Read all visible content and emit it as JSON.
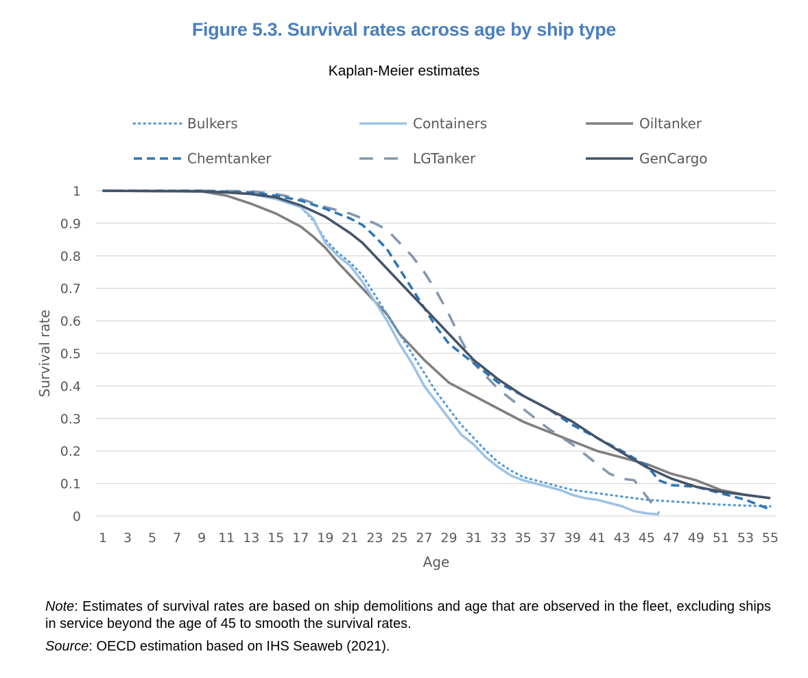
{
  "figure": {
    "title": "Figure 5.3. Survival rates across age by ship type",
    "subtitle": "Kaplan-Meier estimates"
  },
  "notes": {
    "note_label": "Note",
    "note_text": ": Estimates of survival rates are based on ship demolitions and age that are observed in the fleet, excluding ships in service beyond the age of 45 to smooth the survival rates.",
    "source_label": "Source",
    "source_text": ": OECD estimation based on IHS Seaweb (2021)."
  },
  "chart_data": {
    "type": "line",
    "title": "",
    "xlabel": "Age",
    "ylabel": "Survival rate",
    "xlim": [
      1,
      55
    ],
    "ylim": [
      0,
      1
    ],
    "x_ticks": [
      1,
      3,
      5,
      7,
      9,
      11,
      13,
      15,
      17,
      19,
      21,
      23,
      25,
      27,
      29,
      31,
      33,
      35,
      37,
      39,
      41,
      43,
      45,
      47,
      49,
      51,
      53,
      55
    ],
    "y_ticks": [
      "0",
      "0.1",
      "0.2",
      "0.3",
      "0.4",
      "0.5",
      "0.6",
      "0.7",
      "0.8",
      "0.9",
      "1"
    ],
    "grid": "horizontal",
    "legend_position": "top",
    "series": [
      {
        "name": "Bulkers",
        "color": "#5b9bd5",
        "style": "dotted",
        "points": [
          [
            1,
            1
          ],
          [
            9,
            1
          ],
          [
            13,
            0.99
          ],
          [
            15,
            0.975
          ],
          [
            17,
            0.95
          ],
          [
            18,
            0.91
          ],
          [
            19,
            0.85
          ],
          [
            20,
            0.81
          ],
          [
            21,
            0.78
          ],
          [
            22,
            0.74
          ],
          [
            23,
            0.68
          ],
          [
            24,
            0.62
          ],
          [
            25,
            0.56
          ],
          [
            26,
            0.5
          ],
          [
            27,
            0.44
          ],
          [
            28,
            0.38
          ],
          [
            29,
            0.33
          ],
          [
            30,
            0.28
          ],
          [
            31,
            0.24
          ],
          [
            32,
            0.2
          ],
          [
            33,
            0.165
          ],
          [
            34,
            0.14
          ],
          [
            35,
            0.12
          ],
          [
            37,
            0.1
          ],
          [
            39,
            0.08
          ],
          [
            41,
            0.07
          ],
          [
            43,
            0.06
          ],
          [
            45,
            0.05
          ],
          [
            47,
            0.045
          ],
          [
            49,
            0.04
          ],
          [
            51,
            0.035
          ],
          [
            53,
            0.032
          ],
          [
            55,
            0.03
          ]
        ]
      },
      {
        "name": "Containers",
        "color": "#9dc3e6",
        "style": "solid",
        "points": [
          [
            1,
            1
          ],
          [
            9,
            1
          ],
          [
            13,
            0.99
          ],
          [
            15,
            0.975
          ],
          [
            17,
            0.95
          ],
          [
            18,
            0.915
          ],
          [
            19,
            0.84
          ],
          [
            20,
            0.8
          ],
          [
            21,
            0.77
          ],
          [
            22,
            0.72
          ],
          [
            23,
            0.66
          ],
          [
            24,
            0.6
          ],
          [
            25,
            0.53
          ],
          [
            26,
            0.47
          ],
          [
            27,
            0.4
          ],
          [
            28,
            0.35
          ],
          [
            29,
            0.3
          ],
          [
            30,
            0.25
          ],
          [
            31,
            0.22
          ],
          [
            32,
            0.18
          ],
          [
            33,
            0.15
          ],
          [
            34,
            0.125
          ],
          [
            35,
            0.11
          ],
          [
            36,
            0.1
          ],
          [
            37,
            0.09
          ],
          [
            38,
            0.08
          ],
          [
            39,
            0.065
          ],
          [
            40,
            0.055
          ],
          [
            41,
            0.05
          ],
          [
            42,
            0.04
          ],
          [
            43,
            0.03
          ],
          [
            44,
            0.015
          ],
          [
            45,
            0.008
          ],
          [
            46,
            0.005
          ]
        ]
      },
      {
        "name": "Oiltanker",
        "color": "#7f7f7f",
        "style": "solid",
        "points": [
          [
            1,
            1
          ],
          [
            9,
            0.998
          ],
          [
            11,
            0.985
          ],
          [
            13,
            0.96
          ],
          [
            14,
            0.945
          ],
          [
            15,
            0.93
          ],
          [
            16,
            0.91
          ],
          [
            17,
            0.89
          ],
          [
            18,
            0.86
          ],
          [
            19,
            0.825
          ],
          [
            20,
            0.78
          ],
          [
            21,
            0.74
          ],
          [
            22,
            0.7
          ],
          [
            23,
            0.66
          ],
          [
            24,
            0.62
          ],
          [
            25,
            0.56
          ],
          [
            26,
            0.52
          ],
          [
            27,
            0.48
          ],
          [
            28,
            0.445
          ],
          [
            29,
            0.41
          ],
          [
            31,
            0.37
          ],
          [
            33,
            0.33
          ],
          [
            35,
            0.29
          ],
          [
            37,
            0.26
          ],
          [
            39,
            0.23
          ],
          [
            41,
            0.2
          ],
          [
            43,
            0.18
          ],
          [
            45,
            0.16
          ],
          [
            47,
            0.13
          ],
          [
            49,
            0.11
          ],
          [
            51,
            0.08
          ],
          [
            53,
            0.065
          ],
          [
            55,
            0.055
          ]
        ]
      },
      {
        "name": "Chemtanker",
        "color": "#2e75b6",
        "style": "dashed",
        "points": [
          [
            1,
            1
          ],
          [
            9,
            1
          ],
          [
            13,
            0.995
          ],
          [
            15,
            0.985
          ],
          [
            17,
            0.97
          ],
          [
            19,
            0.945
          ],
          [
            21,
            0.915
          ],
          [
            22,
            0.895
          ],
          [
            23,
            0.86
          ],
          [
            24,
            0.82
          ],
          [
            25,
            0.76
          ],
          [
            26,
            0.7
          ],
          [
            27,
            0.64
          ],
          [
            28,
            0.58
          ],
          [
            29,
            0.53
          ],
          [
            30,
            0.5
          ],
          [
            31,
            0.47
          ],
          [
            32,
            0.44
          ],
          [
            33,
            0.41
          ],
          [
            35,
            0.37
          ],
          [
            37,
            0.33
          ],
          [
            39,
            0.28
          ],
          [
            41,
            0.24
          ],
          [
            43,
            0.2
          ],
          [
            45,
            0.155
          ],
          [
            46,
            0.11
          ],
          [
            47,
            0.095
          ],
          [
            49,
            0.09
          ],
          [
            51,
            0.07
          ],
          [
            53,
            0.05
          ],
          [
            55,
            0.02
          ]
        ]
      },
      {
        "name": "LGTanker",
        "color": "#8497b0",
        "style": "longdash",
        "points": [
          [
            1,
            1
          ],
          [
            9,
            1
          ],
          [
            13,
            0.998
          ],
          [
            15,
            0.99
          ],
          [
            17,
            0.975
          ],
          [
            19,
            0.95
          ],
          [
            21,
            0.93
          ],
          [
            22,
            0.915
          ],
          [
            23,
            0.9
          ],
          [
            24,
            0.88
          ],
          [
            25,
            0.84
          ],
          [
            26,
            0.8
          ],
          [
            27,
            0.75
          ],
          [
            28,
            0.69
          ],
          [
            29,
            0.62
          ],
          [
            30,
            0.54
          ],
          [
            31,
            0.47
          ],
          [
            32,
            0.43
          ],
          [
            33,
            0.39
          ],
          [
            34,
            0.36
          ],
          [
            35,
            0.33
          ],
          [
            36,
            0.3
          ],
          [
            37,
            0.27
          ],
          [
            38,
            0.245
          ],
          [
            39,
            0.22
          ],
          [
            40,
            0.19
          ],
          [
            41,
            0.16
          ],
          [
            42,
            0.13
          ],
          [
            43,
            0.115
          ],
          [
            44,
            0.11
          ],
          [
            45,
            0.06
          ],
          [
            46,
            0.01
          ]
        ]
      },
      {
        "name": "GenCargo",
        "color": "#44546a",
        "style": "solid",
        "points": [
          [
            1,
            1
          ],
          [
            9,
            0.998
          ],
          [
            11,
            0.995
          ],
          [
            13,
            0.99
          ],
          [
            15,
            0.98
          ],
          [
            17,
            0.955
          ],
          [
            19,
            0.92
          ],
          [
            21,
            0.87
          ],
          [
            22,
            0.84
          ],
          [
            23,
            0.8
          ],
          [
            24,
            0.76
          ],
          [
            25,
            0.72
          ],
          [
            26,
            0.68
          ],
          [
            27,
            0.64
          ],
          [
            28,
            0.6
          ],
          [
            29,
            0.56
          ],
          [
            30,
            0.52
          ],
          [
            31,
            0.48
          ],
          [
            33,
            0.42
          ],
          [
            35,
            0.37
          ],
          [
            37,
            0.33
          ],
          [
            39,
            0.29
          ],
          [
            41,
            0.24
          ],
          [
            43,
            0.195
          ],
          [
            45,
            0.15
          ],
          [
            47,
            0.115
          ],
          [
            49,
            0.09
          ],
          [
            51,
            0.075
          ],
          [
            53,
            0.065
          ],
          [
            55,
            0.055
          ]
        ]
      }
    ]
  }
}
